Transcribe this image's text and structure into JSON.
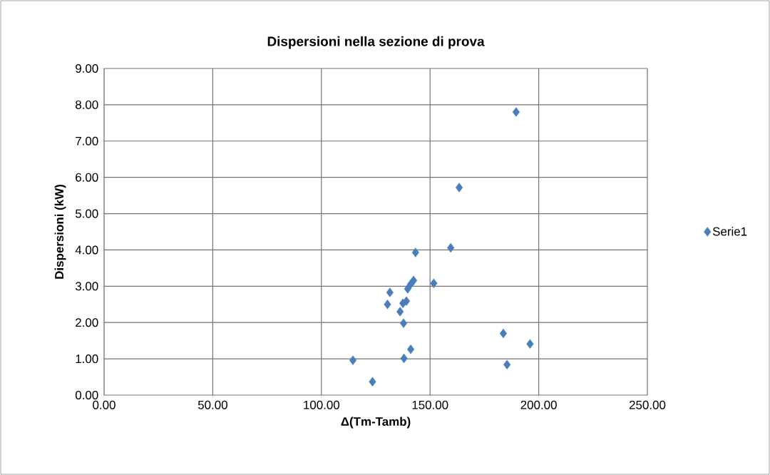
{
  "chart_data": {
    "type": "scatter",
    "title": "Dispersioni nella sezione di prova",
    "xlabel": "Δ(Tm-Tamb)",
    "ylabel": "Dispersioni (kW)",
    "series": [
      {
        "name": "Serie1",
        "color": "#4a7ebb",
        "x": [
          189.6,
          163.4,
          159.5,
          143.3,
          142.4,
          141.1,
          139.7,
          151.7,
          131.5,
          130.4,
          139.1,
          137.5,
          136.2,
          137.8,
          141.1,
          138.0,
          114.5,
          123.5,
          183.7,
          196.0,
          185.4
        ],
        "values": [
          7.8,
          5.72,
          4.06,
          3.93,
          3.16,
          3.06,
          2.93,
          3.08,
          2.83,
          2.5,
          2.59,
          2.53,
          2.3,
          1.98,
          1.26,
          1.01,
          0.96,
          0.37,
          1.7,
          1.41,
          0.84
        ]
      }
    ],
    "xlim": [
      0,
      250
    ],
    "ylim": [
      0,
      9
    ],
    "xticks": [
      {
        "value": 0,
        "label": "0.00"
      },
      {
        "value": 50,
        "label": "50.00"
      },
      {
        "value": 100,
        "label": "100.00"
      },
      {
        "value": 150,
        "label": "150.00"
      },
      {
        "value": 200,
        "label": "200.00"
      },
      {
        "value": 250,
        "label": "250.00"
      }
    ],
    "yticks": [
      {
        "value": 0,
        "label": "0.00"
      },
      {
        "value": 1,
        "label": "1.00"
      },
      {
        "value": 2,
        "label": "2.00"
      },
      {
        "value": 3,
        "label": "3.00"
      },
      {
        "value": 4,
        "label": "4.00"
      },
      {
        "value": 5,
        "label": "5.00"
      },
      {
        "value": 6,
        "label": "6.00"
      },
      {
        "value": 7,
        "label": "7.00"
      },
      {
        "value": 8,
        "label": "8.00"
      },
      {
        "value": 9,
        "label": "9.00"
      }
    ],
    "grid": true,
    "legend": "right",
    "marker": "diamond"
  }
}
